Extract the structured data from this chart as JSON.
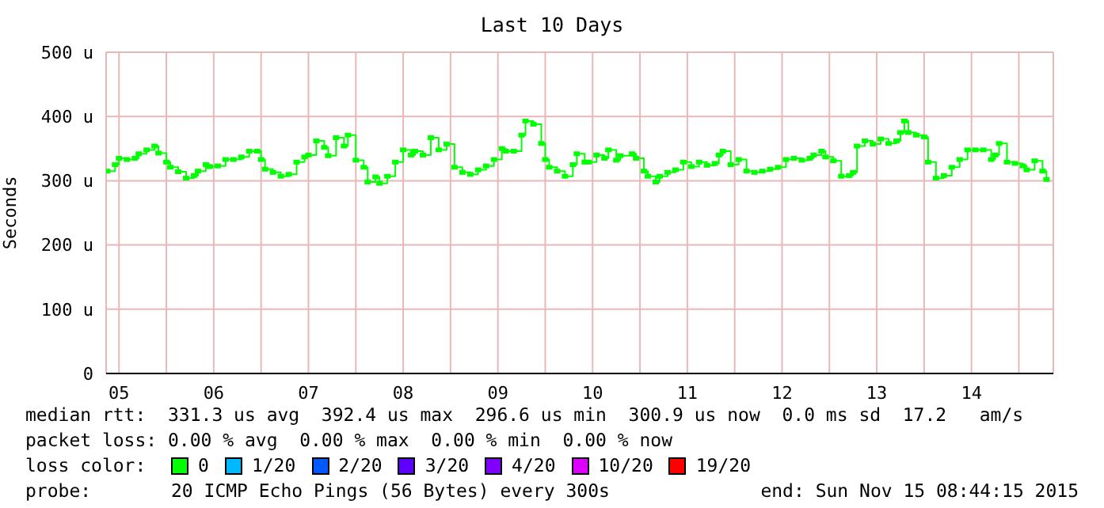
{
  "chart_data": {
    "type": "step",
    "title": "Last 10 Days",
    "ylabel": "Seconds",
    "xlim": [
      "2015-11-05T08:44",
      "2015-11-15T08:44"
    ],
    "xticks": [
      {
        "value": "2015-11-05T12:00",
        "label": "05"
      },
      {
        "value": "2015-11-06T00:00",
        "label": null
      },
      {
        "value": "2015-11-06T12:00",
        "label": "06"
      },
      {
        "value": "2015-11-07T00:00",
        "label": null
      },
      {
        "value": "2015-11-07T12:00",
        "label": "07"
      },
      {
        "value": "2015-11-08T00:00",
        "label": null
      },
      {
        "value": "2015-11-08T12:00",
        "label": "08"
      },
      {
        "value": "2015-11-09T00:00",
        "label": null
      },
      {
        "value": "2015-11-09T12:00",
        "label": "09"
      },
      {
        "value": "2015-11-10T00:00",
        "label": null
      },
      {
        "value": "2015-11-10T12:00",
        "label": "10"
      },
      {
        "value": "2015-11-11T00:00",
        "label": null
      },
      {
        "value": "2015-11-11T12:00",
        "label": "11"
      },
      {
        "value": "2015-11-12T00:00",
        "label": null
      },
      {
        "value": "2015-11-12T12:00",
        "label": "12"
      },
      {
        "value": "2015-11-13T00:00",
        "label": null
      },
      {
        "value": "2015-11-13T12:00",
        "label": "13"
      },
      {
        "value": "2015-11-14T00:00",
        "label": null
      },
      {
        "value": "2015-11-14T12:00",
        "label": "14"
      },
      {
        "value": "2015-11-15T00:00",
        "label": null
      }
    ],
    "ylim": [
      0,
      500
    ],
    "yticks": [
      {
        "value": 0,
        "label": "0"
      },
      {
        "value": 100,
        "label": "100 u"
      },
      {
        "value": 200,
        "label": "200 u"
      },
      {
        "value": 300,
        "label": "300 u"
      },
      {
        "value": 400,
        "label": "400 u"
      },
      {
        "value": 500,
        "label": "500 u"
      }
    ],
    "grid": true,
    "marker": "square",
    "x": [
      "2015-11-05T09:00",
      "2015-11-05T11:00",
      "2015-11-05T12:00",
      "2015-11-05T14:00",
      "2015-11-05T16:00",
      "2015-11-05T17:00",
      "2015-11-05T19:00",
      "2015-11-05T21:00",
      "2015-11-05T22:00",
      "2015-11-06T00:00",
      "2015-11-06T01:00",
      "2015-11-06T03:00",
      "2015-11-06T05:00",
      "2015-11-06T07:00",
      "2015-11-06T08:00",
      "2015-11-06T10:00",
      "2015-11-06T11:00",
      "2015-11-06T13:00",
      "2015-11-06T15:00",
      "2015-11-06T17:00",
      "2015-11-06T19:00",
      "2015-11-06T21:00",
      "2015-11-06T23:00",
      "2015-11-07T00:00",
      "2015-11-07T01:00",
      "2015-11-07T03:00",
      "2015-11-07T05:00",
      "2015-11-07T07:00",
      "2015-11-07T09:00",
      "2015-11-07T11:00",
      "2015-11-07T12:00",
      "2015-11-07T14:00",
      "2015-11-07T16:00",
      "2015-11-07T17:00",
      "2015-11-07T19:00",
      "2015-11-07T21:00",
      "2015-11-07T22:00",
      "2015-11-08T00:00",
      "2015-11-08T02:00",
      "2015-11-08T03:00",
      "2015-11-08T05:00",
      "2015-11-08T06:00",
      "2015-11-08T08:00",
      "2015-11-08T10:00",
      "2015-11-08T12:00",
      "2015-11-08T14:00",
      "2015-11-08T15:00",
      "2015-11-08T17:00",
      "2015-11-08T19:00",
      "2015-11-08T21:00",
      "2015-11-08T23:00",
      "2015-11-09T01:00",
      "2015-11-09T03:00",
      "2015-11-09T05:00",
      "2015-11-09T07:00",
      "2015-11-09T09:00",
      "2015-11-09T11:00",
      "2015-11-09T13:00",
      "2015-11-09T14:00",
      "2015-11-09T16:00",
      "2015-11-09T18:00",
      "2015-11-09T19:00",
      "2015-11-09T21:00",
      "2015-11-09T23:00",
      "2015-11-10T00:00",
      "2015-11-10T01:00",
      "2015-11-10T03:00",
      "2015-11-10T05:00",
      "2015-11-10T07:00",
      "2015-11-10T08:00",
      "2015-11-10T10:00",
      "2015-11-10T11:00",
      "2015-11-10T13:00",
      "2015-11-10T15:00",
      "2015-11-10T16:00",
      "2015-11-10T18:00",
      "2015-11-10T19:00",
      "2015-11-10T22:00",
      "2015-11-10T23:00",
      "2015-11-11T01:00",
      "2015-11-11T02:00",
      "2015-11-11T04:00",
      "2015-11-11T05:00",
      "2015-11-11T07:00",
      "2015-11-11T09:00",
      "2015-11-11T11:00",
      "2015-11-11T13:00",
      "2015-11-11T15:00",
      "2015-11-11T17:00",
      "2015-11-11T19:00",
      "2015-11-11T20:00",
      "2015-11-11T21:00",
      "2015-11-11T23:00",
      "2015-11-12T01:00",
      "2015-11-12T03:00",
      "2015-11-12T05:00",
      "2015-11-12T07:00",
      "2015-11-12T09:00",
      "2015-11-12T11:00",
      "2015-11-12T13:00",
      "2015-11-12T15:00",
      "2015-11-12T17:00",
      "2015-11-12T19:00",
      "2015-11-12T20:00",
      "2015-11-12T22:00",
      "2015-11-12T23:00",
      "2015-11-13T01:00",
      "2015-11-13T03:00",
      "2015-11-13T05:00",
      "2015-11-13T06:00",
      "2015-11-13T07:00",
      "2015-11-13T09:00",
      "2015-11-13T11:00",
      "2015-11-13T13:00",
      "2015-11-13T15:00",
      "2015-11-13T17:00",
      "2015-11-13T18:00",
      "2015-11-13T19:00",
      "2015-11-13T20:00",
      "2015-11-13T22:00",
      "2015-11-14T00:00",
      "2015-11-14T01:00",
      "2015-11-14T03:00",
      "2015-11-14T05:00",
      "2015-11-14T07:00",
      "2015-11-14T09:00",
      "2015-11-14T11:00",
      "2015-11-14T13:00",
      "2015-11-14T15:00",
      "2015-11-14T17:00",
      "2015-11-14T18:00",
      "2015-11-14T19:00",
      "2015-11-14T21:00",
      "2015-11-14T23:00",
      "2015-11-15T01:00",
      "2015-11-15T02:00",
      "2015-11-15T04:00",
      "2015-11-15T06:00",
      "2015-11-15T07:00"
    ],
    "series": [
      {
        "color": "#00ff00",
        "values": [
          315,
          325,
          335,
          333,
          335,
          342,
          348,
          354,
          343,
          329,
          321,
          314,
          304,
          308,
          315,
          325,
          322,
          323,
          333,
          333,
          337,
          346,
          346,
          333,
          318,
          313,
          307,
          310,
          329,
          337,
          340,
          362,
          352,
          339,
          367,
          354,
          371,
          332,
          321,
          298,
          306,
          296,
          307,
          329,
          348,
          340,
          346,
          340,
          367,
          348,
          357,
          321,
          313,
          310,
          317,
          323,
          333,
          350,
          346,
          346,
          371,
          393,
          388,
          358,
          333,
          321,
          315,
          307,
          325,
          342,
          329,
          329,
          340,
          335,
          348,
          332,
          339,
          342,
          335,
          315,
          307,
          298,
          307,
          313,
          317,
          329,
          322,
          329,
          324,
          327,
          340,
          346,
          325,
          333,
          315,
          313,
          315,
          318,
          321,
          333,
          335,
          332,
          335,
          340,
          346,
          337,
          331,
          307,
          308,
          313,
          354,
          362,
          357,
          365,
          358,
          362,
          375,
          393,
          375,
          371,
          368,
          329,
          304,
          308,
          321,
          333,
          348,
          348,
          348,
          333,
          340,
          358,
          329,
          327,
          323,
          317,
          331,
          315,
          302
        ]
      }
    ],
    "annotations": [
      "median rtt:  331.3 us avg  392.4 us max  296.6 us min  300.9 us now  0.0 ms sd  17.2   am/s",
      "packet loss: 0.00 % avg  0.00 % max  0.00 % min  0.00 % now",
      "loss color:",
      "0",
      "1/20",
      "2/20",
      "3/20",
      "4/20",
      "10/20",
      "19/20",
      "probe:",
      "20 ICMP Echo Pings (56 Bytes) every 300s",
      "end: Sun Nov 15 08:44:15 2015"
    ]
  }
}
